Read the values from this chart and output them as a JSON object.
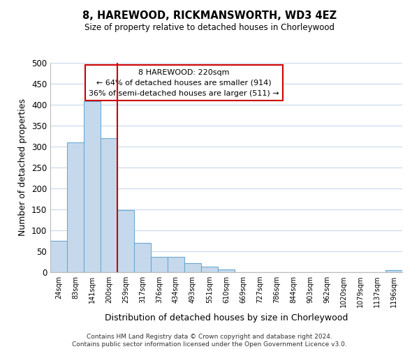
{
  "title": "8, HAREWOOD, RICKMANSWORTH, WD3 4EZ",
  "subtitle": "Size of property relative to detached houses in Chorleywood",
  "xlabel": "Distribution of detached houses by size in Chorleywood",
  "ylabel": "Number of detached properties",
  "bin_labels": [
    "24sqm",
    "83sqm",
    "141sqm",
    "200sqm",
    "259sqm",
    "317sqm",
    "376sqm",
    "434sqm",
    "493sqm",
    "551sqm",
    "610sqm",
    "669sqm",
    "727sqm",
    "786sqm",
    "844sqm",
    "903sqm",
    "962sqm",
    "1020sqm",
    "1079sqm",
    "1137sqm",
    "1196sqm"
  ],
  "bar_values": [
    75,
    310,
    408,
    320,
    148,
    70,
    36,
    36,
    22,
    13,
    6,
    0,
    0,
    0,
    0,
    0,
    0,
    0,
    0,
    0,
    5
  ],
  "bar_color": "#c6d9ec",
  "bar_edge_color": "#6aaad4",
  "vline_x_index": 3,
  "vline_color": "#cc0000",
  "annotation_title": "8 HAREWOOD: 220sqm",
  "annotation_line1": "← 64% of detached houses are smaller (914)",
  "annotation_line2": "36% of semi-detached houses are larger (511) →",
  "annotation_box_color": "#ffffff",
  "annotation_box_edge": "#cc0000",
  "ylim": [
    0,
    500
  ],
  "yticks": [
    0,
    50,
    100,
    150,
    200,
    250,
    300,
    350,
    400,
    450,
    500
  ],
  "footer1": "Contains HM Land Registry data © Crown copyright and database right 2024.",
  "footer2": "Contains public sector information licensed under the Open Government Licence v3.0.",
  "bg_color": "#ffffff",
  "grid_color": "#c8d8ec"
}
